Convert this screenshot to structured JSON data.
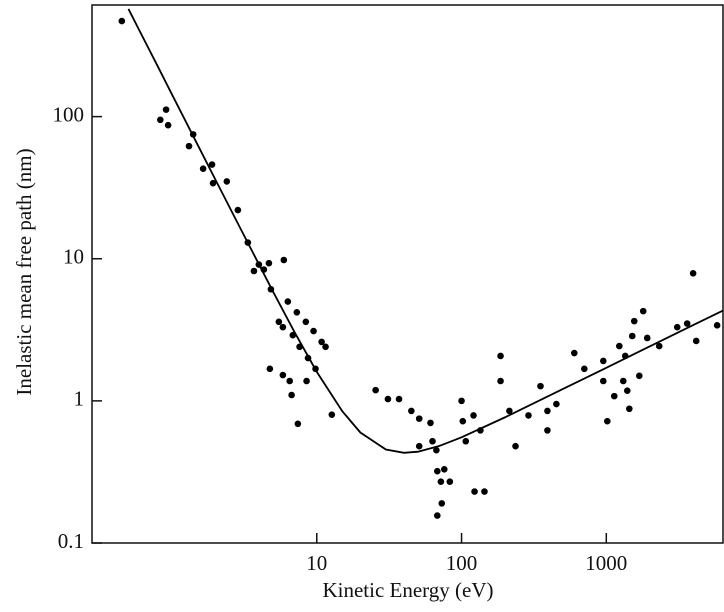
{
  "chart_data": {
    "type": "scatter",
    "xlabel": "Kinetic Energy   (eV)",
    "ylabel": "Inelastic mean free path   (nm)",
    "xscale": "log",
    "yscale": "log",
    "xlim": [
      0.28,
      6400
    ],
    "ylim": [
      0.1,
      610
    ],
    "xticks": [
      10,
      100,
      1000
    ],
    "yticks": [
      0.1,
      1,
      10,
      100
    ],
    "color": "#000000",
    "x": [
      0.45,
      0.83,
      0.91,
      0.94,
      1.31,
      1.4,
      1.64,
      1.89,
      1.92,
      2.39,
      2.85,
      3.34,
      3.68,
      3.98,
      4.31,
      4.67,
      4.82,
      5.92,
      5.47,
      6.31,
      7.28,
      8.4,
      9.5,
      10.8,
      11.5,
      5.83,
      6.83,
      7.6,
      8.7,
      9.8,
      4.74,
      5.83,
      6.5,
      6.7,
      8.5,
      7.4,
      12.7,
      25.5,
      31,
      37,
      45,
      51,
      61,
      51,
      63,
      67,
      68,
      72,
      76,
      68,
      73,
      83,
      100,
      102,
      107,
      121,
      123,
      144,
      135,
      186,
      186,
      214,
      236,
      290,
      351,
      392,
      392,
      452,
      601,
      705,
      953,
      953,
      1016,
      1135,
      1230,
      1352,
      1396,
      1442,
      1511,
      1560,
      1799,
      1918,
      1690,
      2320,
      3090,
      3620,
      3980,
      4180,
      5830,
      1310
    ],
    "values": [
      470,
      95,
      112,
      87,
      62,
      75,
      43,
      46,
      34,
      35,
      22,
      13,
      8.2,
      9.1,
      8.4,
      9.3,
      6.1,
      9.8,
      3.6,
      5.0,
      4.2,
      3.6,
      3.1,
      2.6,
      2.4,
      3.3,
      2.9,
      2.4,
      2.0,
      1.68,
      1.68,
      1.52,
      1.38,
      1.1,
      1.38,
      0.69,
      0.8,
      1.19,
      1.03,
      1.03,
      0.85,
      0.75,
      0.7,
      0.48,
      0.52,
      0.45,
      0.32,
      0.27,
      0.33,
      0.156,
      0.19,
      0.27,
      1.0,
      0.72,
      0.52,
      0.79,
      0.23,
      0.23,
      0.62,
      2.07,
      1.38,
      0.85,
      0.48,
      0.79,
      1.27,
      0.85,
      0.62,
      0.95,
      2.17,
      1.68,
      1.38,
      1.91,
      0.72,
      1.08,
      2.43,
      2.07,
      1.18,
      0.88,
      2.86,
      3.64,
      4.28,
      2.77,
      1.5,
      2.43,
      3.3,
      3.5,
      7.9,
      2.64,
      3.4,
      1.38
    ],
    "curve": {
      "color": "#000000",
      "x": [
        0.5,
        0.6,
        0.8,
        1,
        1.5,
        2,
        3,
        5,
        7,
        10,
        15,
        20,
        30,
        40,
        50,
        70,
        100,
        200,
        500,
        1000,
        2000,
        4000,
        6400
      ],
      "values": [
        572,
        397,
        224,
        143,
        63.6,
        35.8,
        16.0,
        5.84,
        3.06,
        1.6,
        0.845,
        0.599,
        0.455,
        0.431,
        0.439,
        0.481,
        0.554,
        0.767,
        1.21,
        1.71,
        2.42,
        3.42,
        4.32
      ]
    }
  }
}
